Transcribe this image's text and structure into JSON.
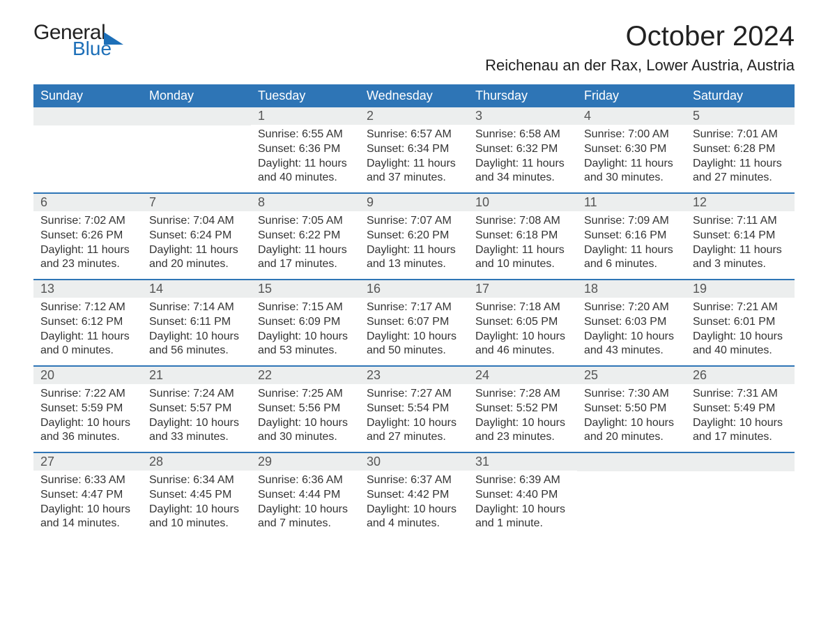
{
  "branding": {
    "logo_general": "General",
    "logo_blue": "Blue"
  },
  "header": {
    "month_title": "October 2024",
    "location": "Reichenau an der Rax, Lower Austria, Austria"
  },
  "calendar": {
    "type": "table",
    "header_bg": "#2e75b6",
    "header_text_color": "#ffffff",
    "day_bar_bg": "#eceeee",
    "week_border_color": "#2e75b6",
    "text_color": "#333333",
    "days_of_week": [
      "Sunday",
      "Monday",
      "Tuesday",
      "Wednesday",
      "Thursday",
      "Friday",
      "Saturday"
    ],
    "weeks": [
      [
        null,
        null,
        {
          "n": "1",
          "sunrise": "Sunrise: 6:55 AM",
          "sunset": "Sunset: 6:36 PM",
          "dl1": "Daylight: 11 hours",
          "dl2": "and 40 minutes."
        },
        {
          "n": "2",
          "sunrise": "Sunrise: 6:57 AM",
          "sunset": "Sunset: 6:34 PM",
          "dl1": "Daylight: 11 hours",
          "dl2": "and 37 minutes."
        },
        {
          "n": "3",
          "sunrise": "Sunrise: 6:58 AM",
          "sunset": "Sunset: 6:32 PM",
          "dl1": "Daylight: 11 hours",
          "dl2": "and 34 minutes."
        },
        {
          "n": "4",
          "sunrise": "Sunrise: 7:00 AM",
          "sunset": "Sunset: 6:30 PM",
          "dl1": "Daylight: 11 hours",
          "dl2": "and 30 minutes."
        },
        {
          "n": "5",
          "sunrise": "Sunrise: 7:01 AM",
          "sunset": "Sunset: 6:28 PM",
          "dl1": "Daylight: 11 hours",
          "dl2": "and 27 minutes."
        }
      ],
      [
        {
          "n": "6",
          "sunrise": "Sunrise: 7:02 AM",
          "sunset": "Sunset: 6:26 PM",
          "dl1": "Daylight: 11 hours",
          "dl2": "and 23 minutes."
        },
        {
          "n": "7",
          "sunrise": "Sunrise: 7:04 AM",
          "sunset": "Sunset: 6:24 PM",
          "dl1": "Daylight: 11 hours",
          "dl2": "and 20 minutes."
        },
        {
          "n": "8",
          "sunrise": "Sunrise: 7:05 AM",
          "sunset": "Sunset: 6:22 PM",
          "dl1": "Daylight: 11 hours",
          "dl2": "and 17 minutes."
        },
        {
          "n": "9",
          "sunrise": "Sunrise: 7:07 AM",
          "sunset": "Sunset: 6:20 PM",
          "dl1": "Daylight: 11 hours",
          "dl2": "and 13 minutes."
        },
        {
          "n": "10",
          "sunrise": "Sunrise: 7:08 AM",
          "sunset": "Sunset: 6:18 PM",
          "dl1": "Daylight: 11 hours",
          "dl2": "and 10 minutes."
        },
        {
          "n": "11",
          "sunrise": "Sunrise: 7:09 AM",
          "sunset": "Sunset: 6:16 PM",
          "dl1": "Daylight: 11 hours",
          "dl2": "and 6 minutes."
        },
        {
          "n": "12",
          "sunrise": "Sunrise: 7:11 AM",
          "sunset": "Sunset: 6:14 PM",
          "dl1": "Daylight: 11 hours",
          "dl2": "and 3 minutes."
        }
      ],
      [
        {
          "n": "13",
          "sunrise": "Sunrise: 7:12 AM",
          "sunset": "Sunset: 6:12 PM",
          "dl1": "Daylight: 11 hours",
          "dl2": "and 0 minutes."
        },
        {
          "n": "14",
          "sunrise": "Sunrise: 7:14 AM",
          "sunset": "Sunset: 6:11 PM",
          "dl1": "Daylight: 10 hours",
          "dl2": "and 56 minutes."
        },
        {
          "n": "15",
          "sunrise": "Sunrise: 7:15 AM",
          "sunset": "Sunset: 6:09 PM",
          "dl1": "Daylight: 10 hours",
          "dl2": "and 53 minutes."
        },
        {
          "n": "16",
          "sunrise": "Sunrise: 7:17 AM",
          "sunset": "Sunset: 6:07 PM",
          "dl1": "Daylight: 10 hours",
          "dl2": "and 50 minutes."
        },
        {
          "n": "17",
          "sunrise": "Sunrise: 7:18 AM",
          "sunset": "Sunset: 6:05 PM",
          "dl1": "Daylight: 10 hours",
          "dl2": "and 46 minutes."
        },
        {
          "n": "18",
          "sunrise": "Sunrise: 7:20 AM",
          "sunset": "Sunset: 6:03 PM",
          "dl1": "Daylight: 10 hours",
          "dl2": "and 43 minutes."
        },
        {
          "n": "19",
          "sunrise": "Sunrise: 7:21 AM",
          "sunset": "Sunset: 6:01 PM",
          "dl1": "Daylight: 10 hours",
          "dl2": "and 40 minutes."
        }
      ],
      [
        {
          "n": "20",
          "sunrise": "Sunrise: 7:22 AM",
          "sunset": "Sunset: 5:59 PM",
          "dl1": "Daylight: 10 hours",
          "dl2": "and 36 minutes."
        },
        {
          "n": "21",
          "sunrise": "Sunrise: 7:24 AM",
          "sunset": "Sunset: 5:57 PM",
          "dl1": "Daylight: 10 hours",
          "dl2": "and 33 minutes."
        },
        {
          "n": "22",
          "sunrise": "Sunrise: 7:25 AM",
          "sunset": "Sunset: 5:56 PM",
          "dl1": "Daylight: 10 hours",
          "dl2": "and 30 minutes."
        },
        {
          "n": "23",
          "sunrise": "Sunrise: 7:27 AM",
          "sunset": "Sunset: 5:54 PM",
          "dl1": "Daylight: 10 hours",
          "dl2": "and 27 minutes."
        },
        {
          "n": "24",
          "sunrise": "Sunrise: 7:28 AM",
          "sunset": "Sunset: 5:52 PM",
          "dl1": "Daylight: 10 hours",
          "dl2": "and 23 minutes."
        },
        {
          "n": "25",
          "sunrise": "Sunrise: 7:30 AM",
          "sunset": "Sunset: 5:50 PM",
          "dl1": "Daylight: 10 hours",
          "dl2": "and 20 minutes."
        },
        {
          "n": "26",
          "sunrise": "Sunrise: 7:31 AM",
          "sunset": "Sunset: 5:49 PM",
          "dl1": "Daylight: 10 hours",
          "dl2": "and 17 minutes."
        }
      ],
      [
        {
          "n": "27",
          "sunrise": "Sunrise: 6:33 AM",
          "sunset": "Sunset: 4:47 PM",
          "dl1": "Daylight: 10 hours",
          "dl2": "and 14 minutes."
        },
        {
          "n": "28",
          "sunrise": "Sunrise: 6:34 AM",
          "sunset": "Sunset: 4:45 PM",
          "dl1": "Daylight: 10 hours",
          "dl2": "and 10 minutes."
        },
        {
          "n": "29",
          "sunrise": "Sunrise: 6:36 AM",
          "sunset": "Sunset: 4:44 PM",
          "dl1": "Daylight: 10 hours",
          "dl2": "and 7 minutes."
        },
        {
          "n": "30",
          "sunrise": "Sunrise: 6:37 AM",
          "sunset": "Sunset: 4:42 PM",
          "dl1": "Daylight: 10 hours",
          "dl2": "and 4 minutes."
        },
        {
          "n": "31",
          "sunrise": "Sunrise: 6:39 AM",
          "sunset": "Sunset: 4:40 PM",
          "dl1": "Daylight: 10 hours",
          "dl2": "and 1 minute."
        },
        null,
        null
      ]
    ]
  }
}
